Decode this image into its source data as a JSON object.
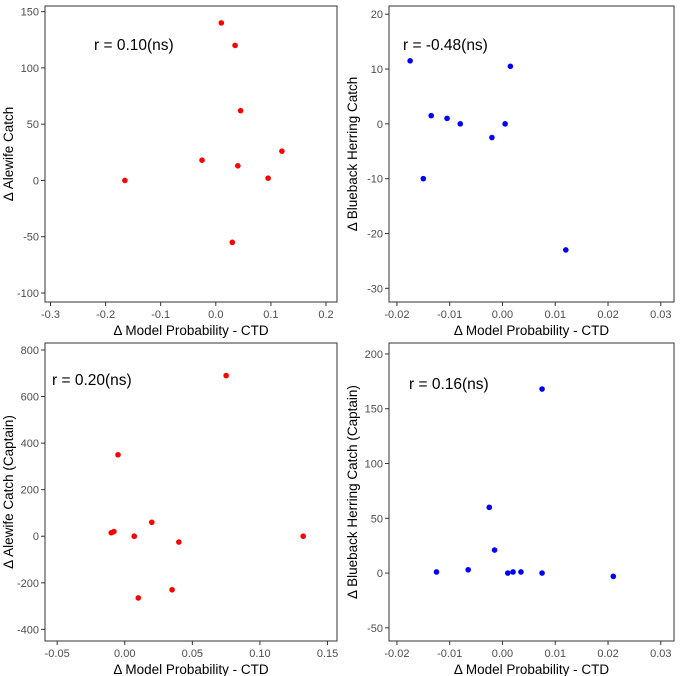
{
  "chart_data": [
    {
      "type": "scatter",
      "title": "",
      "xlabel": "Δ Model Probability - CTD",
      "ylabel": "Δ Alewife Catch",
      "annotation": "r = 0.10(ns)",
      "color": "#ff0000",
      "xlim": [
        -0.31,
        0.22
      ],
      "ylim": [
        -108,
        155
      ],
      "xticks": [
        -0.3,
        -0.2,
        -0.1,
        0.0,
        0.1,
        0.2
      ],
      "xtick_labels": [
        "-0.3",
        "-0.2",
        "-0.1",
        "0.0",
        "0.1",
        "0.2"
      ],
      "yticks": [
        -100,
        -50,
        0,
        50,
        100,
        150
      ],
      "ytick_labels": [
        "-100",
        "-50",
        "0",
        "50",
        "100",
        "150"
      ],
      "points": [
        {
          "x": -0.165,
          "y": 0
        },
        {
          "x": -0.025,
          "y": 18
        },
        {
          "x": 0.01,
          "y": 140
        },
        {
          "x": 0.03,
          "y": -55
        },
        {
          "x": 0.035,
          "y": 120
        },
        {
          "x": 0.04,
          "y": 13
        },
        {
          "x": 0.045,
          "y": 62
        },
        {
          "x": 0.095,
          "y": 2
        },
        {
          "x": 0.12,
          "y": 26
        }
      ]
    },
    {
      "type": "scatter",
      "title": "",
      "xlabel": "Δ Model Probability - CTD",
      "ylabel": "Δ Blueback Herring Catch",
      "annotation": "r = -0.48(ns)",
      "color": "#0000ff",
      "xlim": [
        -0.0215,
        0.0325
      ],
      "ylim": [
        -32.5,
        21.5
      ],
      "xticks": [
        -0.02,
        -0.01,
        0.0,
        0.01,
        0.02,
        0.03
      ],
      "xtick_labels": [
        "-0.02",
        "-0.01",
        "0.00",
        "0.01",
        "0.02",
        "0.03"
      ],
      "yticks": [
        -30,
        -20,
        -10,
        0,
        10,
        20
      ],
      "ytick_labels": [
        "-30",
        "-20",
        "-10",
        "0",
        "10",
        "20"
      ],
      "points": [
        {
          "x": -0.0175,
          "y": 11.5
        },
        {
          "x": -0.015,
          "y": -10
        },
        {
          "x": -0.0135,
          "y": 1.5
        },
        {
          "x": -0.0105,
          "y": 1
        },
        {
          "x": -0.008,
          "y": 0
        },
        {
          "x": -0.002,
          "y": -2.5
        },
        {
          "x": 0.0005,
          "y": 0
        },
        {
          "x": 0.0015,
          "y": 10.5
        },
        {
          "x": 0.012,
          "y": -23
        }
      ]
    },
    {
      "type": "scatter",
      "title": "",
      "xlabel": "Δ Model Probability - CTD",
      "ylabel": "Δ Alewife Catch (Captain)",
      "annotation": "r = 0.20(ns)",
      "color": "#ff0000",
      "xlim": [
        -0.059,
        0.157
      ],
      "ylim": [
        -450,
        830
      ],
      "xticks": [
        -0.05,
        0.0,
        0.05,
        0.1,
        0.15
      ],
      "xtick_labels": [
        "-0.05",
        "0.00",
        "0.05",
        "0.10",
        "0.15"
      ],
      "yticks": [
        -400,
        -200,
        0,
        200,
        400,
        600,
        800
      ],
      "ytick_labels": [
        "-400",
        "-200",
        "0",
        "200",
        "400",
        "600",
        "800"
      ],
      "points": [
        {
          "x": -0.01,
          "y": 15
        },
        {
          "x": -0.008,
          "y": 20
        },
        {
          "x": -0.005,
          "y": 350
        },
        {
          "x": 0.007,
          "y": 0
        },
        {
          "x": 0.01,
          "y": -265
        },
        {
          "x": 0.02,
          "y": 60
        },
        {
          "x": 0.035,
          "y": -230
        },
        {
          "x": 0.04,
          "y": -25
        },
        {
          "x": 0.075,
          "y": 690
        },
        {
          "x": 0.132,
          "y": 0
        }
      ]
    },
    {
      "type": "scatter",
      "title": "",
      "xlabel": "Δ Model Probability - CTD",
      "ylabel": "Δ Blueback Herring Catch (Captain)",
      "annotation": "r = 0.16(ns)",
      "color": "#0000ff",
      "xlim": [
        -0.0215,
        0.0325
      ],
      "ylim": [
        -62,
        210
      ],
      "xticks": [
        -0.02,
        -0.01,
        0.0,
        0.01,
        0.02,
        0.03
      ],
      "xtick_labels": [
        "-0.02",
        "-0.01",
        "0.00",
        "0.01",
        "0.02",
        "0.03"
      ],
      "yticks": [
        -50,
        0,
        50,
        100,
        150,
        200
      ],
      "ytick_labels": [
        "-50",
        "0",
        "50",
        "100",
        "150",
        "200"
      ],
      "points": [
        {
          "x": -0.0125,
          "y": 1
        },
        {
          "x": -0.0065,
          "y": 3
        },
        {
          "x": -0.0025,
          "y": 60
        },
        {
          "x": -0.0015,
          "y": 21
        },
        {
          "x": 0.001,
          "y": 0
        },
        {
          "x": 0.002,
          "y": 1
        },
        {
          "x": 0.0035,
          "y": 1
        },
        {
          "x": 0.0075,
          "y": 168
        },
        {
          "x": 0.0075,
          "y": 0
        },
        {
          "x": 0.021,
          "y": -3
        }
      ]
    }
  ]
}
